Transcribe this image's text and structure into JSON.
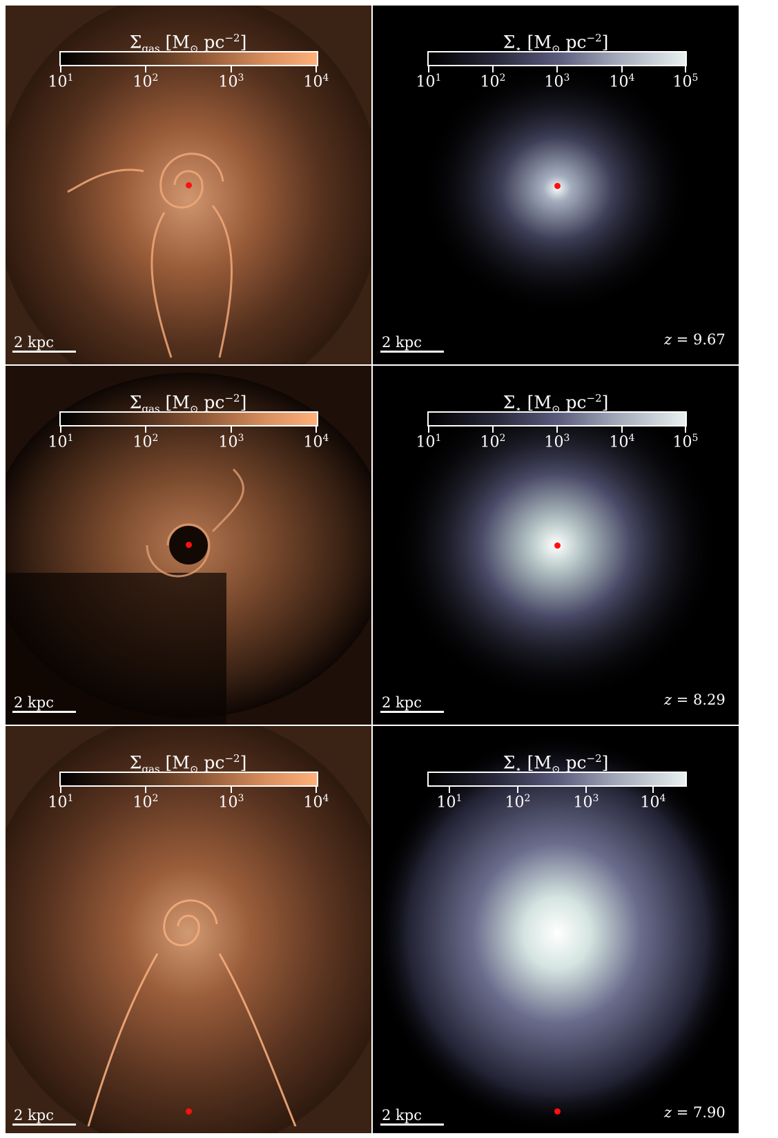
{
  "panels": [
    {
      "row": 0,
      "gas_label": "Σ",
      "gas_sub": "gas",
      "star_label": "Σ",
      "star_sub": "⋆",
      "unit": "[M",
      "unit_sun": "⊙",
      "unit_pc": " pc",
      "unit_exp": "−2",
      "unit_close": "]",
      "scale": "2 kpc",
      "redshift_var": "z",
      "redshift_eq": " = 9.67"
    },
    {
      "row": 1,
      "scale": "2 kpc",
      "redshift_var": "z",
      "redshift_eq": " = 8.29"
    },
    {
      "row": 2,
      "scale": "2 kpc",
      "redshift_var": "z",
      "redshift_eq": " = 7.90"
    }
  ],
  "gas_ticks": [
    {
      "base": "10",
      "exp": "1"
    },
    {
      "base": "10",
      "exp": "2"
    },
    {
      "base": "10",
      "exp": "3"
    },
    {
      "base": "10",
      "exp": "4"
    }
  ],
  "star_ticks_a": [
    {
      "base": "10",
      "exp": "1"
    },
    {
      "base": "10",
      "exp": "2"
    },
    {
      "base": "10",
      "exp": "3"
    },
    {
      "base": "10",
      "exp": "4"
    },
    {
      "base": "10",
      "exp": "5"
    }
  ],
  "star_ticks_b": [
    {
      "base": "10",
      "exp": "1"
    },
    {
      "base": "10",
      "exp": "2"
    },
    {
      "base": "10",
      "exp": "3"
    },
    {
      "base": "10",
      "exp": "4"
    }
  ],
  "colors": {
    "gas": "#e8a070",
    "star": "#c8d4d8",
    "center": "#ff1010"
  }
}
